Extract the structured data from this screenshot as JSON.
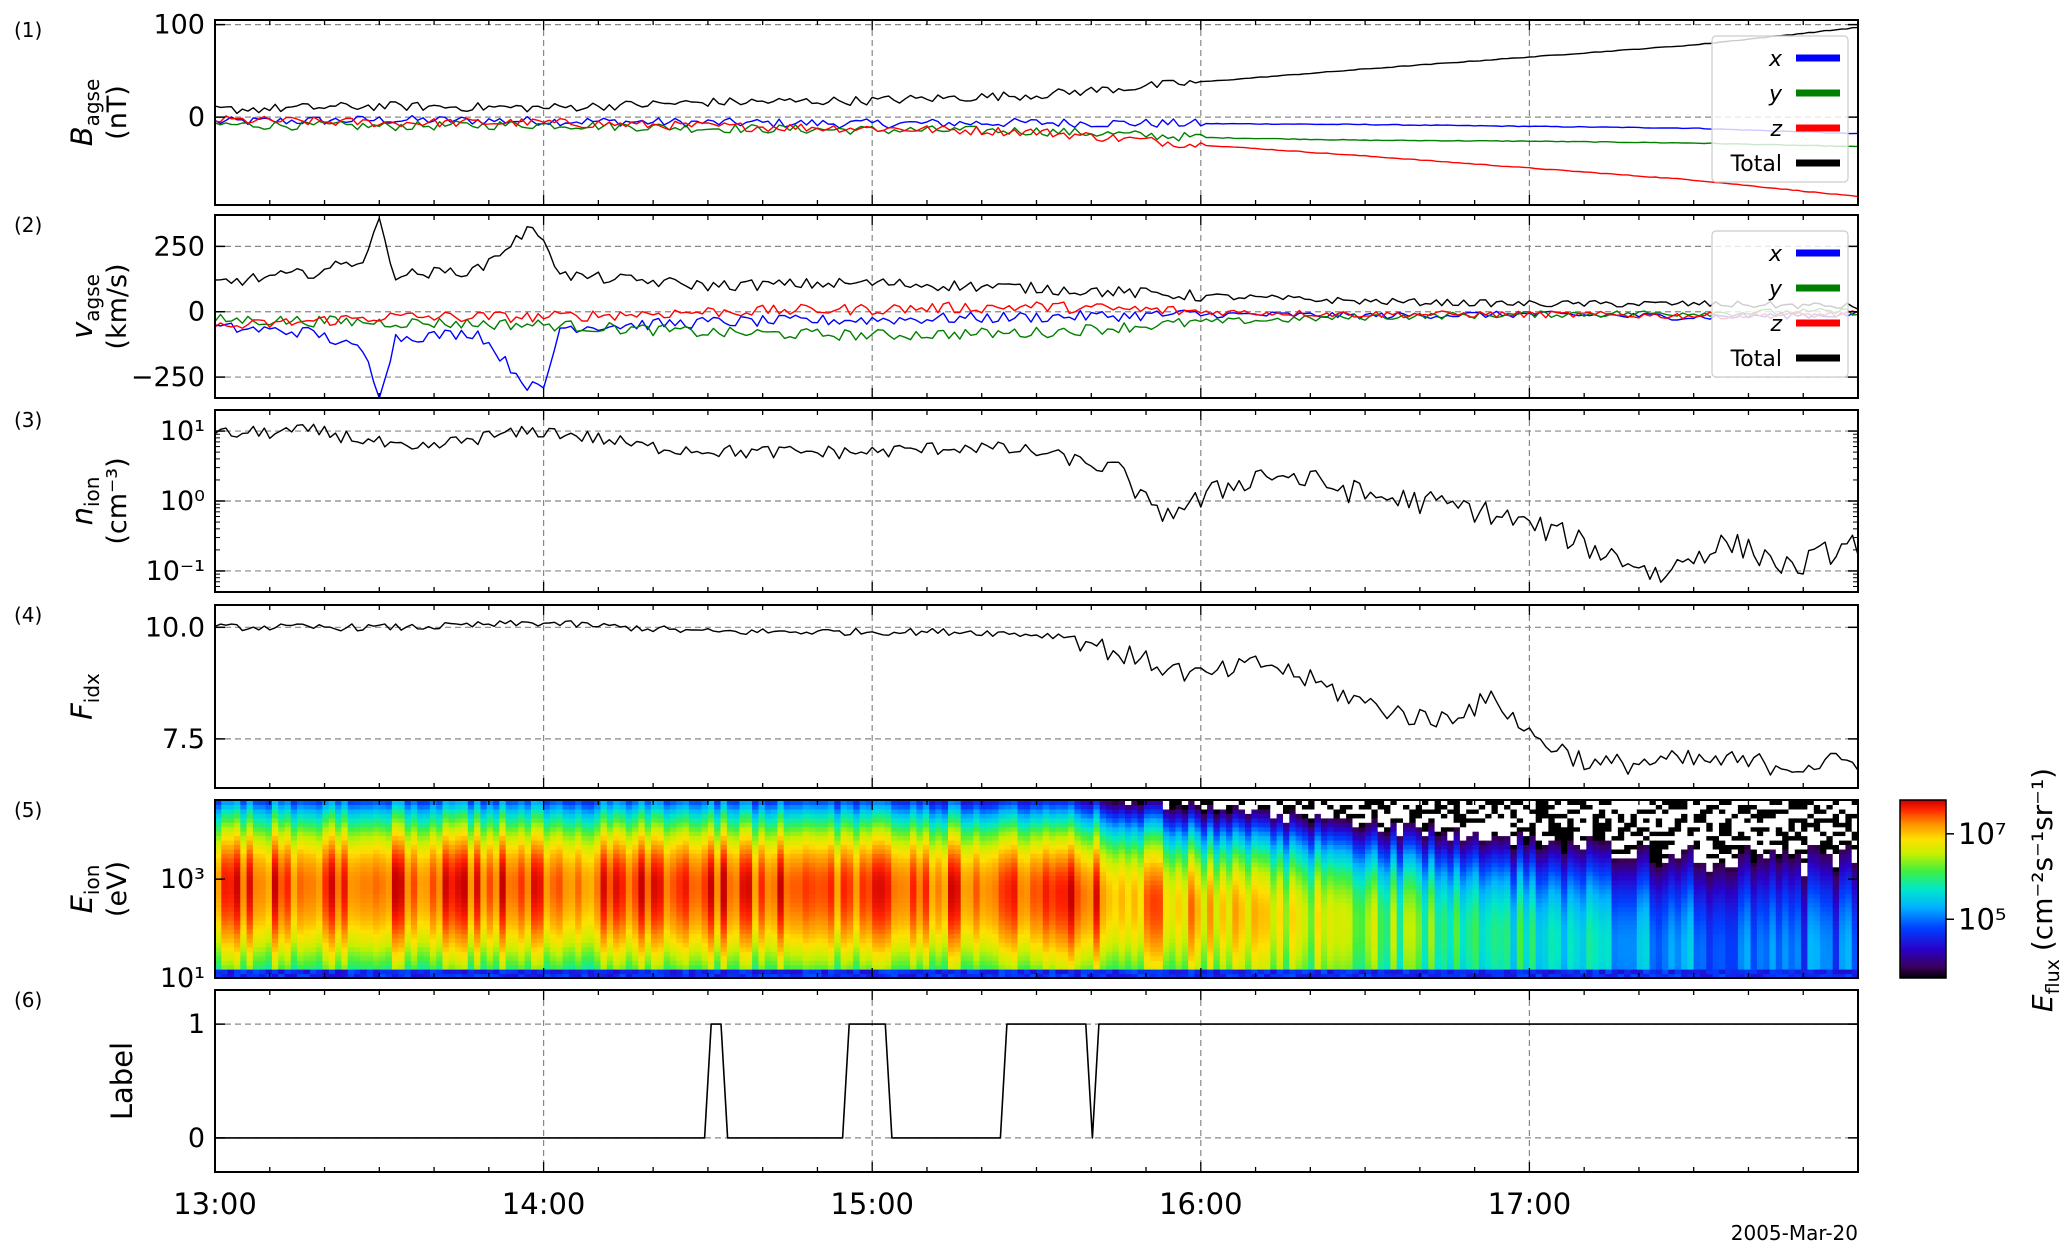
{
  "date_label": "2005-Mar-20",
  "x_tick_labels": [
    "13:00",
    "14:00",
    "15:00",
    "16:00",
    "17:00"
  ],
  "x_range_hours": [
    13.0,
    18.0
  ],
  "colors": {
    "x": "#0000ff",
    "y": "#008000",
    "z": "#ff0000",
    "total": "#000000"
  },
  "panels": [
    {
      "id": "B",
      "tag": "(1)",
      "ylabel_main": "B",
      "ylabel_sub": "agse",
      "ylabel_unit": "(nT)",
      "yticks": [
        "100",
        "0"
      ]
    },
    {
      "id": "V",
      "tag": "(2)",
      "ylabel_main": "v",
      "ylabel_sub": "agse",
      "ylabel_unit": "(km/s)",
      "yticks": [
        "250",
        "0",
        "−250"
      ]
    },
    {
      "id": "N",
      "tag": "(3)",
      "ylabel_main": "n",
      "ylabel_sub": "ion",
      "ylabel_unit": "(cm⁻³)",
      "yticks": [
        "10¹",
        "10⁰",
        "10⁻¹"
      ]
    },
    {
      "id": "F",
      "tag": "(4)",
      "ylabel_main": "F",
      "ylabel_sub": "idx",
      "ylabel_unit": "",
      "yticks": [
        "10.0",
        "7.5"
      ]
    },
    {
      "id": "E",
      "tag": "(5)",
      "ylabel_main": "E",
      "ylabel_sub": "ion",
      "ylabel_unit": "(eV)",
      "yticks": [
        "10³",
        "10¹"
      ]
    },
    {
      "id": "L",
      "tag": "(6)",
      "ylabel_main": "Label",
      "ylabel_sub": "",
      "ylabel_unit": "",
      "yticks": [
        "1",
        "0"
      ]
    }
  ],
  "legend": [
    "x",
    "y",
    "z",
    "Total"
  ],
  "colorbar": {
    "label_main": "E",
    "label_sub": "flux",
    "label_unit": "(cm⁻²s⁻¹sr⁻¹)",
    "ticks": [
      "10⁷",
      "10⁵"
    ]
  },
  "chart_data": [
    {
      "type": "line",
      "panel": "(1)",
      "ylabel": "B_agse (nT)",
      "ylim": [
        -95,
        105
      ],
      "x_unit": "UT hour",
      "series": [
        {
          "name": "x",
          "x": [
            13.0,
            13.5,
            14.0,
            14.5,
            15.0,
            15.5,
            16.0,
            16.5,
            17.0,
            17.5,
            18.0
          ],
          "values": [
            -5,
            -3,
            -4,
            -6,
            -7,
            -6,
            -7,
            -8,
            -10,
            -12,
            -18
          ]
        },
        {
          "name": "y",
          "x": [
            13.0,
            13.5,
            14.0,
            14.5,
            15.0,
            15.5,
            16.0,
            16.5,
            17.0,
            17.5,
            18.0
          ],
          "values": [
            -8,
            -10,
            -8,
            -12,
            -14,
            -15,
            -22,
            -25,
            -26,
            -28,
            -32
          ]
        },
        {
          "name": "z",
          "x": [
            13.0,
            13.5,
            14.0,
            14.5,
            15.0,
            15.5,
            16.0,
            16.5,
            17.0,
            17.5,
            18.0
          ],
          "values": [
            -3,
            -6,
            -6,
            -10,
            -12,
            -16,
            -30,
            -42,
            -55,
            -68,
            -86
          ]
        },
        {
          "name": "Total",
          "x": [
            13.0,
            13.5,
            14.0,
            14.5,
            15.0,
            15.5,
            16.0,
            16.5,
            17.0,
            17.5,
            18.0
          ],
          "values": [
            8,
            12,
            10,
            16,
            18,
            24,
            38,
            52,
            65,
            78,
            97
          ]
        }
      ]
    },
    {
      "type": "line",
      "panel": "(2)",
      "ylabel": "v_agse (km/s)",
      "ylim": [
        -330,
        370
      ],
      "x_unit": "UT hour",
      "series": [
        {
          "name": "x",
          "x": [
            13.0,
            13.3,
            13.45,
            13.5,
            13.55,
            13.8,
            13.95,
            14.0,
            14.05,
            14.5,
            15.0,
            15.5,
            16.0,
            16.5,
            17.0,
            17.5,
            18.0
          ],
          "values": [
            -60,
            -80,
            -150,
            -310,
            -100,
            -80,
            -280,
            -300,
            -60,
            -40,
            -30,
            -20,
            -10,
            -15,
            -10,
            -20,
            -10
          ]
        },
        {
          "name": "y",
          "x": [
            13.0,
            13.5,
            14.0,
            14.5,
            15.0,
            15.5,
            16.0,
            16.5,
            17.0,
            17.5,
            18.0
          ],
          "values": [
            -30,
            -40,
            -50,
            -80,
            -90,
            -80,
            -40,
            -20,
            -10,
            -5,
            0
          ]
        },
        {
          "name": "z",
          "x": [
            13.0,
            13.5,
            14.0,
            14.5,
            15.0,
            15.5,
            16.0,
            16.5,
            17.0,
            17.5,
            18.0
          ],
          "values": [
            -60,
            -20,
            -20,
            0,
            10,
            20,
            0,
            -10,
            -10,
            -15,
            -10
          ]
        },
        {
          "name": "Total",
          "x": [
            13.0,
            13.3,
            13.45,
            13.5,
            13.55,
            13.8,
            13.95,
            14.0,
            14.05,
            14.5,
            15.0,
            15.5,
            16.0,
            16.5,
            17.0,
            17.5,
            18.0
          ],
          "values": [
            110,
            150,
            200,
            340,
            140,
            160,
            310,
            290,
            140,
            100,
            110,
            90,
            60,
            40,
            30,
            30,
            20
          ]
        }
      ]
    },
    {
      "type": "line",
      "panel": "(3)",
      "ylabel": "n_ion (cm^-3)",
      "yscale": "log",
      "ylim": [
        0.05,
        20
      ],
      "x_unit": "UT hour",
      "series": [
        {
          "name": "n_ion",
          "x": [
            13.0,
            13.3,
            13.6,
            13.8,
            14.0,
            14.3,
            14.6,
            15.0,
            15.3,
            15.5,
            15.75,
            15.85,
            16.0,
            16.2,
            16.5,
            16.8,
            17.0,
            17.2,
            17.4,
            17.6,
            17.8,
            18.0
          ],
          "values": [
            9,
            10,
            5,
            8,
            10,
            6,
            5,
            5,
            6,
            5,
            2.5,
            0.6,
            1.0,
            2.5,
            1.2,
            0.8,
            0.45,
            0.2,
            0.08,
            0.25,
            0.1,
            0.25
          ]
        }
      ]
    },
    {
      "type": "line",
      "panel": "(4)",
      "ylabel": "F_idx",
      "ylim": [
        6.4,
        10.5
      ],
      "x_unit": "UT hour",
      "series": [
        {
          "name": "F_idx",
          "x": [
            13.0,
            13.3,
            13.6,
            14.0,
            14.5,
            15.0,
            15.3,
            15.6,
            15.8,
            16.0,
            16.2,
            16.5,
            16.7,
            16.9,
            17.0,
            17.2,
            17.4,
            17.6,
            17.8,
            18.0
          ],
          "values": [
            10.0,
            10.0,
            10.0,
            10.1,
            9.9,
            9.9,
            9.9,
            9.8,
            9.3,
            8.9,
            9.2,
            8.3,
            7.9,
            8.4,
            7.6,
            6.9,
            7.0,
            7.0,
            6.9,
            7.0
          ]
        }
      ]
    },
    {
      "type": "heatmap",
      "panel": "(5)",
      "ylabel": "E_ion (eV)",
      "yscale": "log",
      "ylim": [
        10,
        40000
      ],
      "x_unit": "UT hour",
      "peak_energy_eV": {
        "x": [
          13.0,
          14.0,
          15.0,
          15.5,
          16.0,
          16.5,
          17.0,
          17.5,
          18.0
        ],
        "values": [
          800,
          800,
          700,
          600,
          250,
          120,
          60,
          30,
          30
        ]
      },
      "colorbar_range_log10": [
        3.7,
        7.5
      ]
    },
    {
      "type": "line",
      "panel": "(6)",
      "ylabel": "Label",
      "ylim": [
        -0.3,
        1.3
      ],
      "x_unit": "UT hour",
      "series": [
        {
          "name": "Label",
          "x": [
            13.0,
            14.49,
            14.51,
            14.54,
            14.56,
            14.91,
            14.93,
            15.04,
            15.06,
            15.39,
            15.41,
            15.65,
            15.67,
            15.69,
            18.0
          ],
          "values": [
            0,
            0,
            1,
            1,
            0,
            0,
            1,
            1,
            0,
            0,
            1,
            1,
            0,
            1,
            1
          ]
        }
      ]
    }
  ]
}
